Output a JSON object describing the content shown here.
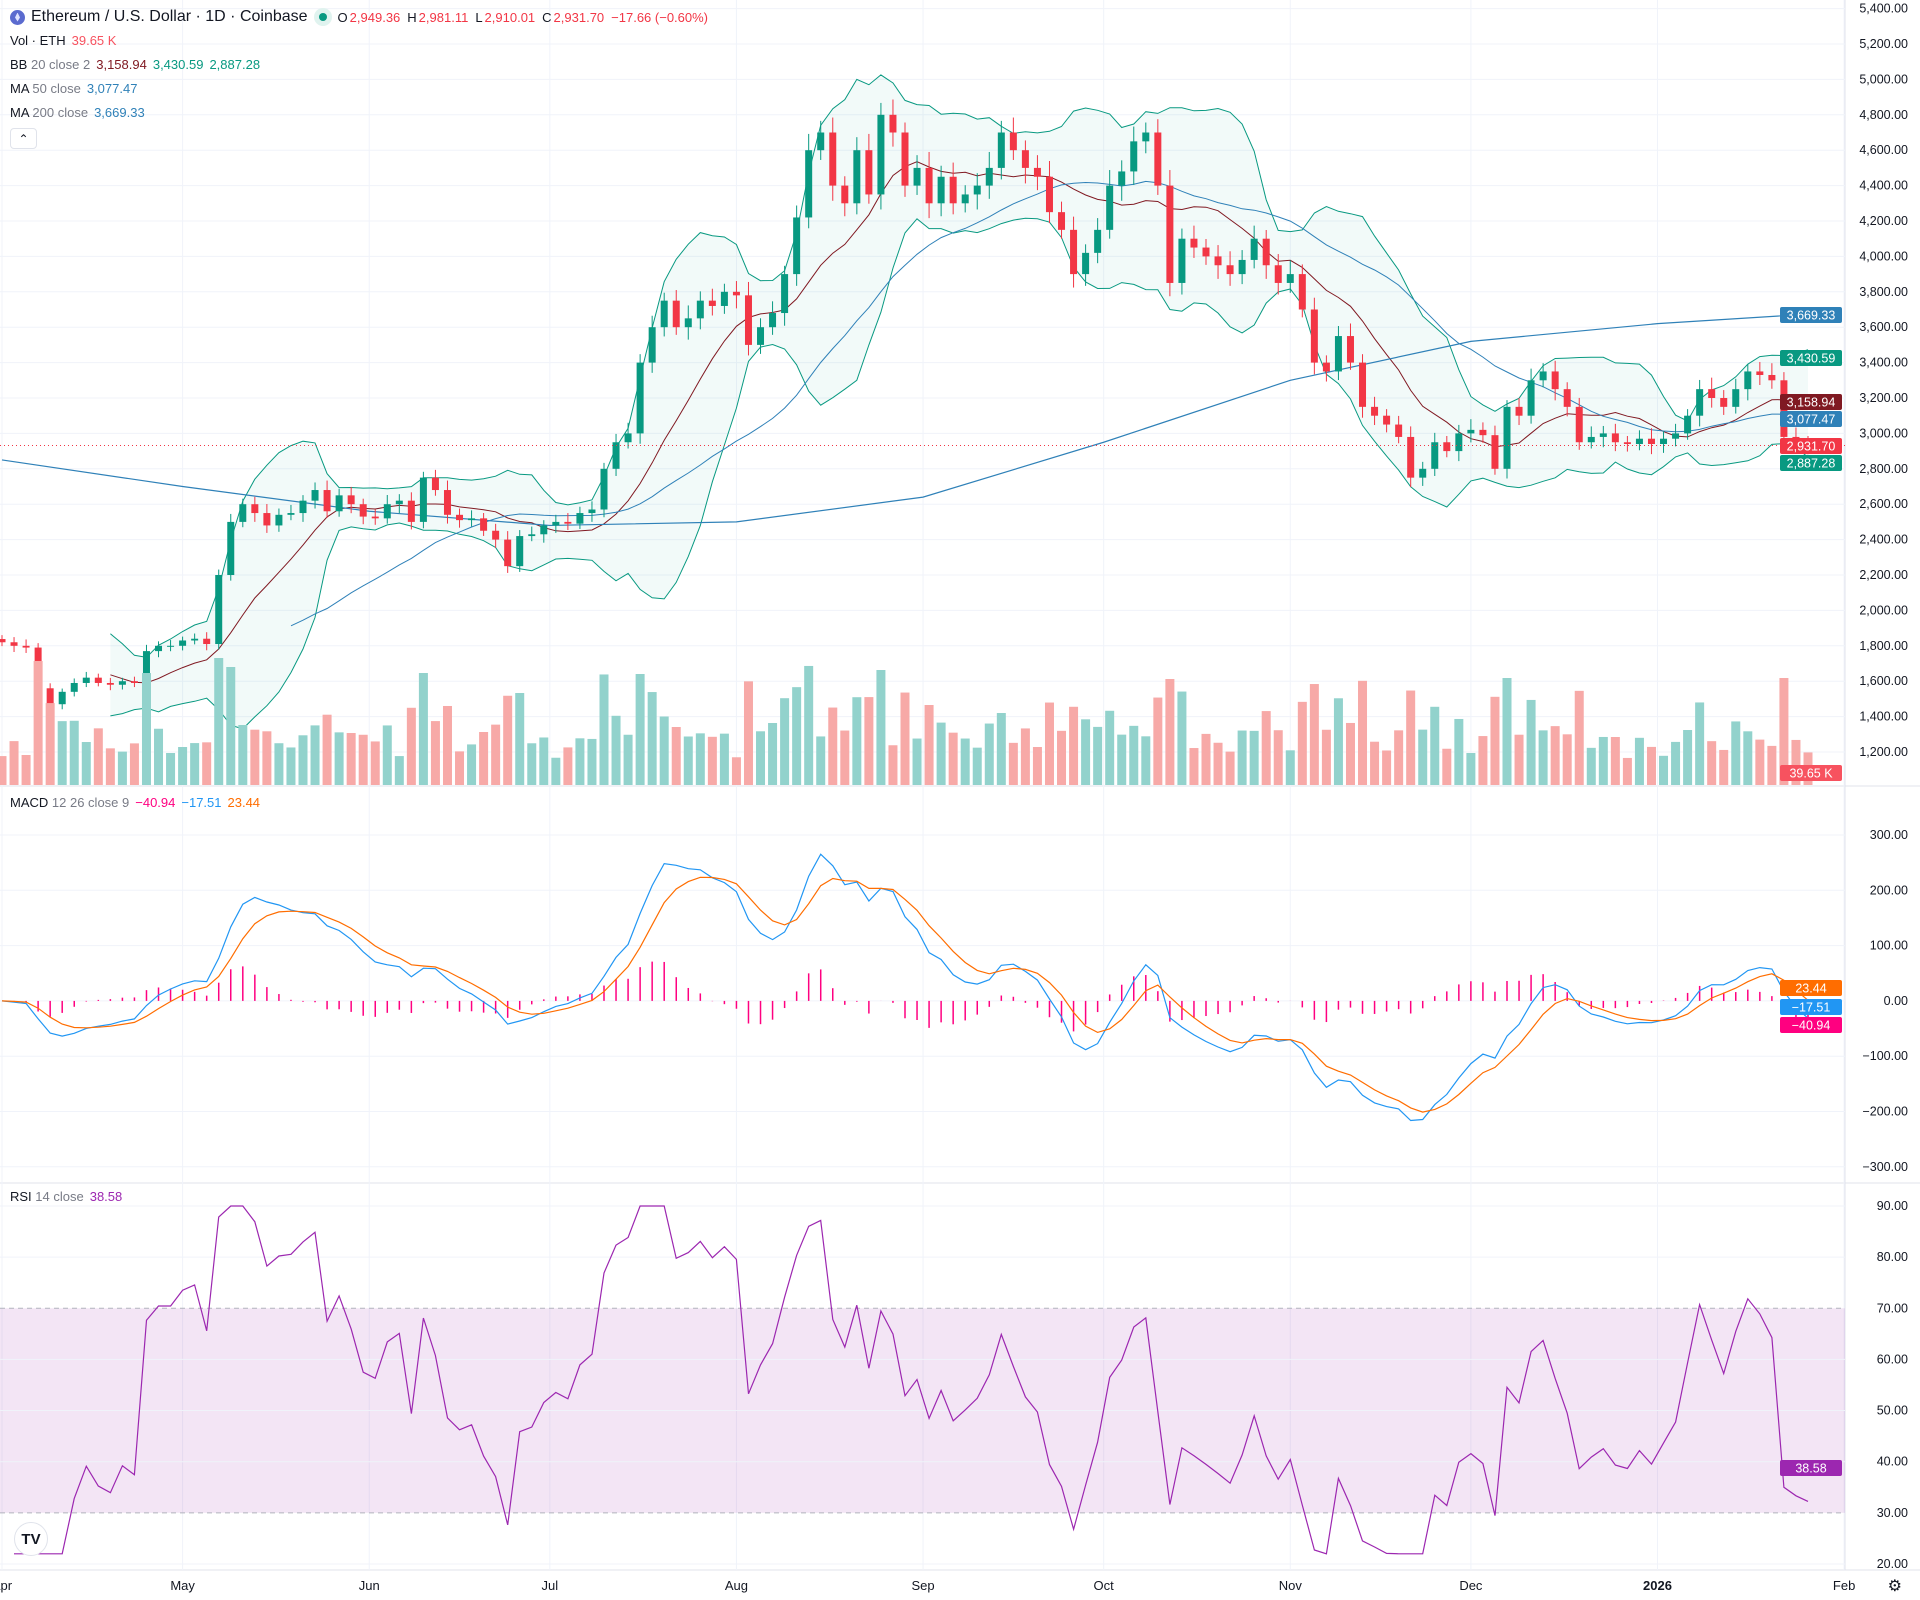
{
  "header": {
    "symbol": "Ethereum / U.S. Dollar · 1D · Coinbase",
    "open_label": "O",
    "open": "2,949.36",
    "high_label": "H",
    "high": "2,981.11",
    "low_label": "L",
    "low": "2,910.01",
    "close_label": "C",
    "close": "2,931.70",
    "change": "−17.66 (−0.60%)"
  },
  "legends": {
    "vol": {
      "name": "Vol · ETH",
      "value": "39.65 K"
    },
    "bb": {
      "name": "BB",
      "params": "20 close 2",
      "basis": "3,158.94",
      "upper": "3,430.59",
      "lower": "2,887.28"
    },
    "ma50": {
      "name": "MA",
      "params": "50 close",
      "value": "3,077.47"
    },
    "ma200": {
      "name": "MA",
      "params": "200 close",
      "value": "3,669.33"
    },
    "macd": {
      "name": "MACD",
      "params": "12 26 close 9",
      "hist": "−40.94",
      "macd": "−17.51",
      "signal": "23.44"
    },
    "rsi": {
      "name": "RSI",
      "params": "14 close",
      "value": "38.58"
    }
  },
  "collapse_icon": "chevron-up-icon",
  "colors": {
    "up": "#089981",
    "down": "#f23645",
    "bb_basis": "#801922",
    "bb_band": "#089981",
    "ma50": "#2962ff",
    "ma200": "#2f81b8",
    "macd": "#2196f3",
    "signal": "#ff6d00",
    "hist": "#ff0080",
    "rsi": "#9c27b0"
  },
  "chart_data": {
    "type": "candlestick",
    "interval": "2-day sampled closes (approx.)",
    "start_date": "2025-04-01",
    "closes": [
      1820,
      1800,
      1790,
      1560,
      1470,
      1540,
      1590,
      1620,
      1590,
      1580,
      1600,
      1590,
      1770,
      1800,
      1800,
      1830,
      1840,
      1810,
      2200,
      2500,
      2600,
      2550,
      2480,
      2540,
      2550,
      2620,
      2680,
      2560,
      2650,
      2600,
      2530,
      2520,
      2600,
      2620,
      2500,
      2750,
      2680,
      2540,
      2510,
      2520,
      2450,
      2400,
      2250,
      2420,
      2430,
      2480,
      2500,
      2490,
      2550,
      2570,
      2800,
      2950,
      3000,
      3400,
      3600,
      3750,
      3600,
      3650,
      3750,
      3720,
      3800,
      3780,
      3500,
      3600,
      3680,
      3900,
      4220,
      4600,
      4700,
      4400,
      4300,
      4600,
      4350,
      4800,
      4700,
      4400,
      4500,
      4300,
      4450,
      4300,
      4350,
      4400,
      4500,
      4700,
      4600,
      4500,
      4450,
      4250,
      4150,
      3900,
      4020,
      4150,
      4400,
      4480,
      4650,
      4700,
      4400,
      3850,
      4100,
      4050,
      4000,
      3950,
      3900,
      3980,
      4100,
      3950,
      3850,
      3900,
      3700,
      3400,
      3350,
      3550,
      3400,
      3150,
      3100,
      3050,
      2980,
      2750,
      2800,
      2950,
      2900,
      3000,
      3020,
      2990,
      2800,
      3150,
      3100,
      3300,
      3350,
      3250,
      3150,
      2950,
      2980,
      3000,
      2950,
      2940,
      2970,
      2940,
      2970,
      3000,
      3100,
      3250,
      3200,
      3150,
      3250,
      3350,
      3330,
      3300,
      2980,
      2950,
      2931.7
    ],
    "ma200": [
      [
        "2025-04-01",
        2850
      ],
      [
        "2025-05-01",
        2700
      ],
      [
        "2025-06-01",
        2560
      ],
      [
        "2025-07-01",
        2480
      ],
      [
        "2025-08-01",
        2500
      ],
      [
        "2025-09-01",
        2640
      ],
      [
        "2025-10-01",
        2950
      ],
      [
        "2025-11-01",
        3300
      ],
      [
        "2025-12-01",
        3520
      ],
      [
        "2026-01-01",
        3620
      ],
      [
        "2026-01-24",
        3669.33
      ]
    ],
    "price_ticks": [
      "5,400.00",
      "5,200.00",
      "5,000.00",
      "4,800.00",
      "4,600.00",
      "4,400.00",
      "4,200.00",
      "4,000.00",
      "3,800.00",
      "3,600.00",
      "3,400.00",
      "3,200.00",
      "3,000.00",
      "2,800.00",
      "2,600.00",
      "2,400.00",
      "2,200.00",
      "2,000.00",
      "1,800.00",
      "1,600.00",
      "1,400.00",
      "1,200.00"
    ],
    "macd_ticks": [
      "300.00",
      "200.00",
      "100.00",
      "0.00",
      "−100.00",
      "−200.00",
      "−300.00"
    ],
    "rsi_ticks": [
      "90.00",
      "80.00",
      "70.00",
      "60.00",
      "50.00",
      "40.00",
      "30.00",
      "20.00"
    ],
    "rsi_band": [
      30,
      70
    ],
    "time_ticks": [
      {
        "label": "Apr",
        "date": "2025-04-01"
      },
      {
        "label": "May",
        "date": "2025-05-01"
      },
      {
        "label": "Jun",
        "date": "2025-06-01"
      },
      {
        "label": "Jul",
        "date": "2025-07-01"
      },
      {
        "label": "Aug",
        "date": "2025-08-01"
      },
      {
        "label": "Sep",
        "date": "2025-09-01"
      },
      {
        "label": "Oct",
        "date": "2025-10-01"
      },
      {
        "label": "Nov",
        "date": "2025-11-01"
      },
      {
        "label": "Dec",
        "date": "2025-12-01"
      },
      {
        "label": "2026",
        "date": "2026-01-01",
        "bold": true
      },
      {
        "label": "Feb",
        "date": "2026-02-01"
      }
    ],
    "last_labels": {
      "ma200": "3,669.33",
      "bb_upper": "3,430.59",
      "bb_basis": "3,158.94",
      "ma50": "3,077.47",
      "close": "2,931.70",
      "bb_lower": "2,887.28",
      "volume": "39.65 K",
      "macd_signal": "23.44",
      "macd": "−17.51",
      "macd_hist": "−40.94",
      "rsi": "38.58"
    }
  }
}
